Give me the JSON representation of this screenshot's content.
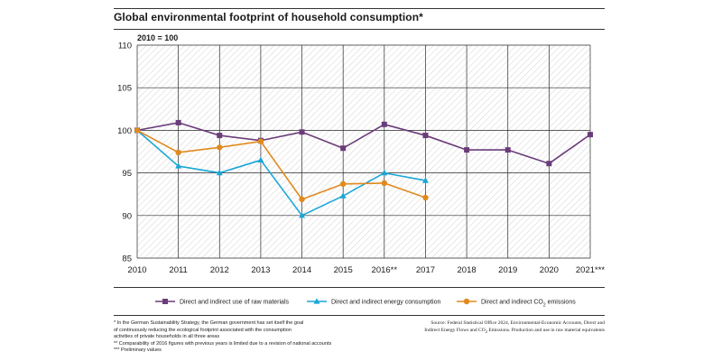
{
  "header": {
    "title": "Global environmental footprint of household consumption*"
  },
  "chart_data": {
    "type": "line",
    "title": "Global environmental footprint of household consumption*",
    "index_note": "2010 = 100",
    "categories": [
      "2010",
      "2011",
      "2012",
      "2013",
      "2014",
      "2015",
      "2016**",
      "2017",
      "2018",
      "2019",
      "2020",
      "2021***"
    ],
    "ylim": [
      85,
      110
    ],
    "yticks": [
      85,
      90,
      95,
      100,
      105,
      110
    ],
    "grid": true,
    "legend_position": "bottom",
    "series": [
      {
        "name": "Direct and indirect use of raw materials",
        "marker": "square",
        "color": "#6b3c7a",
        "values": [
          100,
          100.9,
          99.4,
          98.8,
          99.8,
          97.9,
          100.7,
          99.4,
          97.7,
          97.7,
          96.1,
          99.5
        ]
      },
      {
        "name": "Direct and indirect energy consumption",
        "marker": "triangle",
        "color": "#1aa6d6",
        "values": [
          100,
          95.8,
          95.0,
          96.5,
          90.0,
          92.3,
          95.0,
          94.1,
          null,
          null,
          null,
          null
        ]
      },
      {
        "name_prefix": "Direct and indirect CO",
        "name_sub": "2",
        "name_suffix": " emissions",
        "marker": "circle",
        "color": "#e08a1e",
        "values": [
          100,
          97.4,
          98.0,
          98.7,
          91.9,
          93.7,
          93.8,
          92.1,
          null,
          null,
          null,
          null
        ]
      }
    ]
  },
  "footnotes": [
    "* In the German Sustainability Strategy, the German government has set itself the goal",
    "of continuously reducing the ecological footprint associated with the consumption",
    "activities of private households in all three areas",
    "** Comparability of 2016 figures with previous years is limited due to a revision of national accounts",
    "*** Preliminary values"
  ],
  "source": {
    "line1": "Source: Federal Statistical Office 2024, Environmental-Economic Accounts, Direct and",
    "line2_prefix": "Indirect Energy Flows and CO",
    "line2_sub": "2",
    "line2_suffix": " Emissions. Production and use in raw material equivalents"
  }
}
